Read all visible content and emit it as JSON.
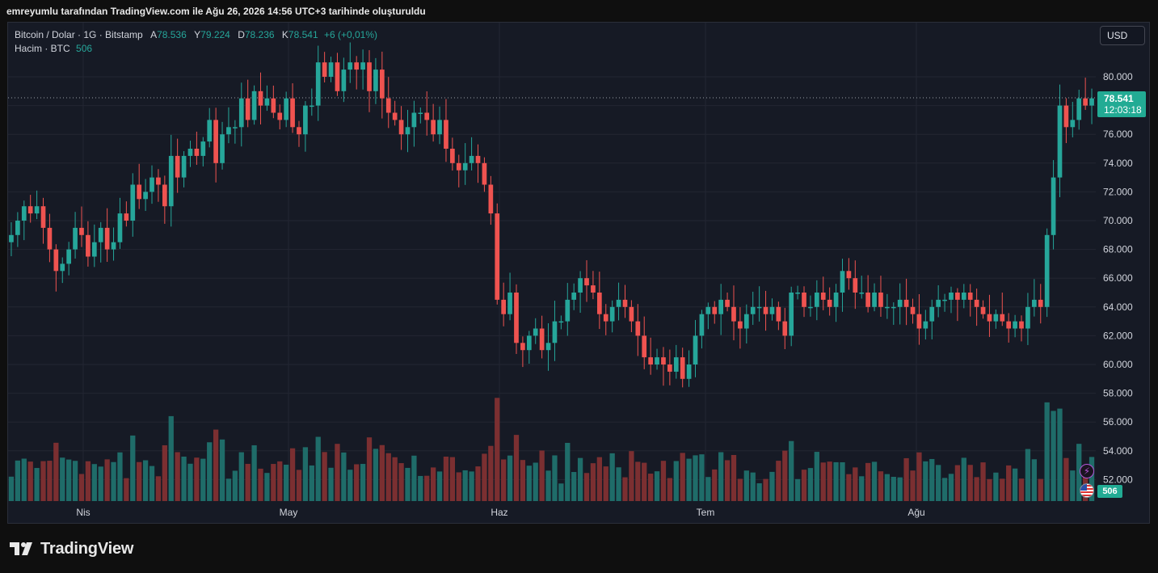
{
  "caption": "emreyumlu tarafından TradingView.com ile Ağu 26, 2026 14:56 UTC+3 tarihinde oluşturuldu",
  "legend": {
    "symbol": "Bitcoin / Dolar · 1G · Bitstamp",
    "open_label": "A",
    "open": "78.536",
    "high_label": "Y",
    "high": "79.224",
    "low_label": "D",
    "low": "78.236",
    "close_label": "K",
    "close": "78.541",
    "change": "+6 (+0,01%)",
    "volume_label": "Hacim · BTC",
    "volume_value": "506"
  },
  "currency_button": "USD",
  "last_price": "78.541",
  "countdown": "12:03:18",
  "volume_tag": "506",
  "icons": {
    "lightning": "lightning-icon",
    "flag": "us-flag-icon",
    "brand": "tradingview-logo-icon"
  },
  "colors": {
    "up": "#26a69a",
    "down": "#ef5350",
    "up_volume": "#1f6c69",
    "down_volume": "#7b2f31",
    "price_tag": "#22ab94",
    "background": "#161a25"
  },
  "brand_name": "TradingView",
  "chart_data": {
    "type": "candlestick",
    "x_ticks": [
      "Nis",
      "May",
      "Haz",
      "Tem",
      "Ağu"
    ],
    "y_ticks": [
      "52.000",
      "54.000",
      "56.000",
      "58.000",
      "60.000",
      "62.000",
      "64.000",
      "66.000",
      "68.000",
      "70.000",
      "72.000",
      "74.000",
      "76.000",
      "78.000",
      "80.000"
    ],
    "ylim": [
      51000,
      82000
    ],
    "last_price": 78541,
    "grid": true,
    "series": [
      {
        "name": "Bitcoin / Dolar",
        "close": [
          69000,
          70000,
          71000,
          70500,
          71000,
          69500,
          68000,
          66500,
          67000,
          68000,
          69500,
          69000,
          67500,
          68500,
          69500,
          68000,
          68500,
          70500,
          70000,
          72500,
          71500,
          72000,
          73000,
          72500,
          71000,
          74500,
          73000,
          74500,
          75000,
          74500,
          75500,
          77000,
          74000,
          76000,
          76500,
          76500,
          78500,
          77000,
          79000,
          78000,
          78500,
          77500,
          77000,
          78500,
          76500,
          76000,
          78000,
          78000,
          81000,
          80000,
          81000,
          79000,
          80500,
          81000,
          80500,
          81000,
          79000,
          80500,
          78500,
          77500,
          77000,
          76000,
          76500,
          77500,
          77500,
          77000,
          76000,
          77000,
          75000,
          74000,
          73500,
          74000,
          74500,
          74000,
          72500,
          70500,
          64500,
          63500,
          65000,
          61500,
          61000,
          62000,
          62500,
          61000,
          61500,
          63000,
          63000,
          64500,
          65000,
          66000,
          65500,
          65000,
          63500,
          63000,
          64000,
          64500,
          64000,
          63000,
          62000,
          60500,
          60000,
          60500,
          60000,
          59500,
          60500,
          59000,
          60000,
          62000,
          63500,
          64000,
          63500,
          64500,
          64000,
          63000,
          62500,
          63500,
          64000,
          64000,
          63500,
          64000,
          63000,
          62000,
          65000,
          65000,
          64000,
          64000,
          65000,
          64500,
          64000,
          65000,
          66500,
          66000,
          65000,
          65000,
          64000,
          65000,
          64000,
          64000,
          64000,
          64500,
          64000,
          63500,
          62500,
          63000,
          64000,
          64500,
          64500,
          65000,
          64500,
          65000,
          64500,
          64000,
          63500,
          63000,
          63500,
          63000,
          62500,
          63000,
          62500,
          64000,
          64500,
          64000,
          69000,
          73000,
          78000,
          76500,
          77000,
          78500,
          78000,
          78500
        ]
      }
    ],
    "volume": {
      "name": "Hacim · BTC",
      "last": 506,
      "ymax": 58000
    }
  }
}
